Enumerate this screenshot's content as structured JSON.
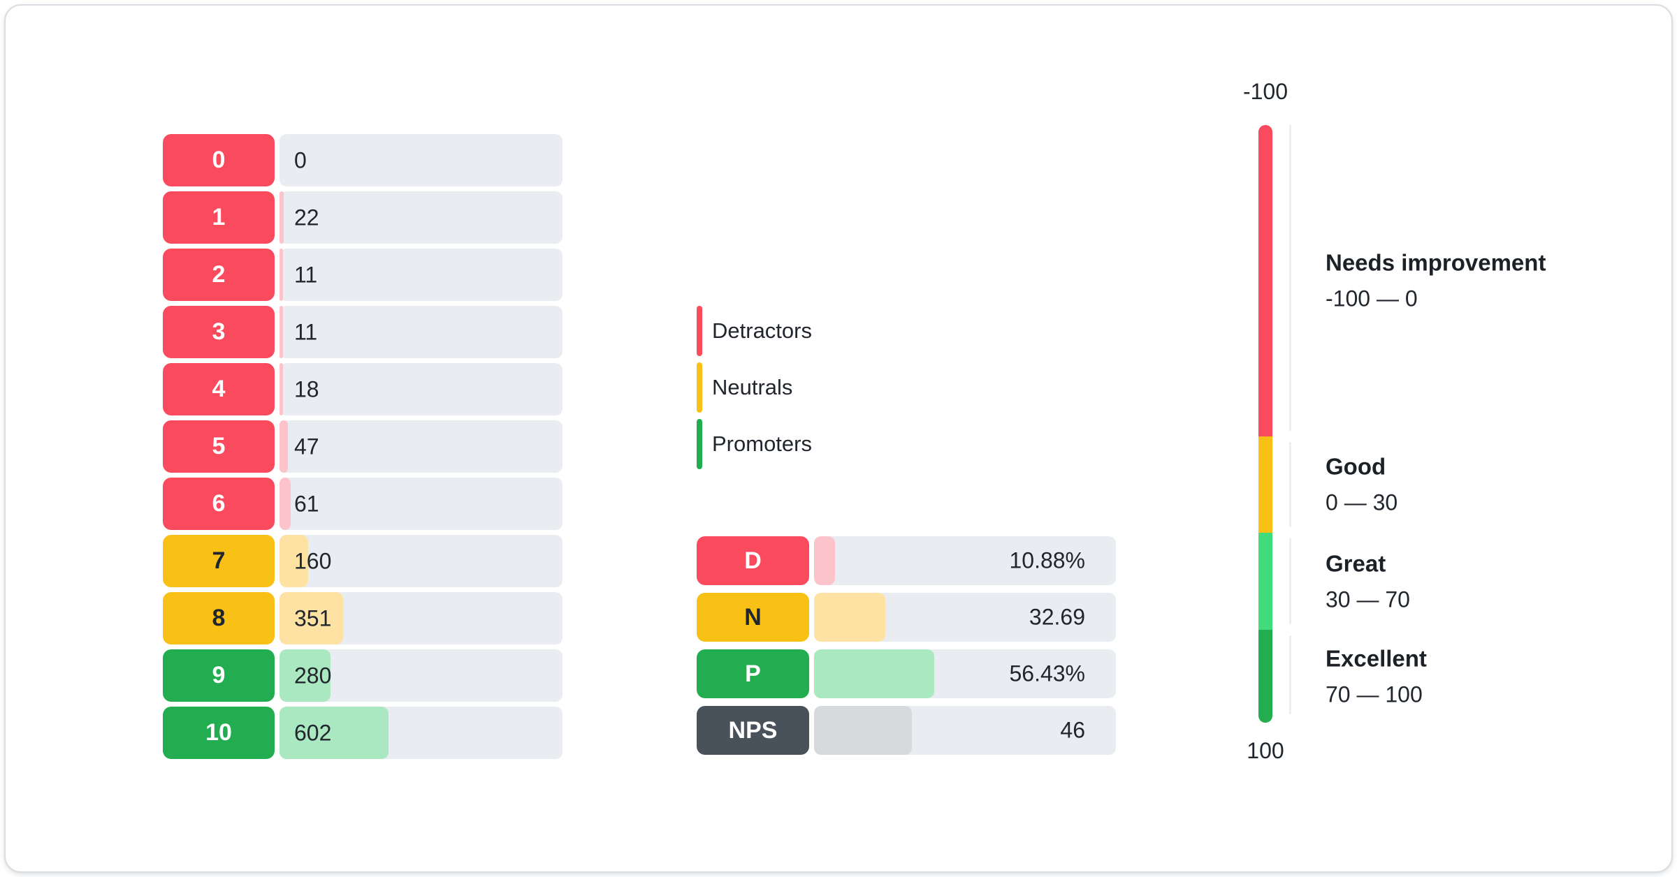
{
  "chart_data": [
    {
      "type": "bar",
      "orientation": "horizontal",
      "categories": [
        "0",
        "1",
        "2",
        "3",
        "4",
        "5",
        "6",
        "7",
        "8",
        "9",
        "10"
      ],
      "values": [
        0,
        22,
        11,
        11,
        18,
        47,
        61,
        160,
        351,
        280,
        602
      ],
      "groups": {
        "detractors": "scores 0-6",
        "neutrals": "scores 7-8",
        "promoters": "scores 9-10"
      }
    },
    {
      "type": "bar",
      "orientation": "horizontal",
      "categories": [
        "D",
        "N",
        "P",
        "NPS"
      ],
      "values": [
        10.88,
        32.69,
        56.43,
        46
      ],
      "value_labels": [
        "10.88%",
        "32.69",
        "56.43%",
        "46"
      ]
    },
    {
      "type": "gauge",
      "min": -100,
      "max": 100,
      "zones": [
        {
          "label": "Needs improvement",
          "from": -100,
          "to": 0
        },
        {
          "label": "Good",
          "from": 0,
          "to": 30
        },
        {
          "label": "Great",
          "from": 30,
          "to": 70
        },
        {
          "label": "Excellent",
          "from": 70,
          "to": 100
        }
      ]
    }
  ],
  "score_chart": {
    "row_categories": [
      "detractor",
      "detractor",
      "detractor",
      "detractor",
      "detractor",
      "detractor",
      "detractor",
      "neutral",
      "neutral",
      "promoter",
      "promoter"
    ]
  },
  "legend": {
    "items": [
      {
        "label": "Detractors",
        "category": "detractor"
      },
      {
        "label": "Neutrals",
        "category": "neutral"
      },
      {
        "label": "Promoters",
        "category": "promoter"
      }
    ]
  },
  "summary": {
    "rows": [
      {
        "category": "detractor",
        "fill_pct": 7.0
      },
      {
        "category": "neutral",
        "fill_pct": 23.7
      },
      {
        "category": "promoter",
        "fill_pct": 39.9
      },
      {
        "category": "nps",
        "fill_pct": 32.3
      }
    ]
  },
  "gauge": {
    "top_label": "-100",
    "bottom_label": "100",
    "sections": [
      {
        "title": "Needs improvement",
        "range": "-100 — 0",
        "category": "detractor",
        "height_pct": 52.1
      },
      {
        "title": "Good",
        "range": "0 — 30",
        "category": "neutral",
        "height_pct": 16.1
      },
      {
        "title": "Great",
        "range": "30 — 70",
        "category": "great",
        "height_pct": 16.3
      },
      {
        "title": "Excellent",
        "range": "70 — 100",
        "category": "promoter",
        "height_pct": 15.5
      }
    ]
  },
  "colors": {
    "detractor": "#fa4b5e",
    "detractor_light": "#fcc3cb",
    "neutral": "#f9c015",
    "neutral_light": "#fde2a4",
    "promoter": "#23ad51",
    "promoter_light": "#a9e8c0",
    "great": "#41db7e",
    "nps": "#49515b",
    "nps_light": "#d7dadd",
    "track": "#e9edf1",
    "text": "#21262d",
    "dark_text": "#21262d",
    "card_border": "#d9dde1",
    "tick_line": "#eceef1"
  }
}
